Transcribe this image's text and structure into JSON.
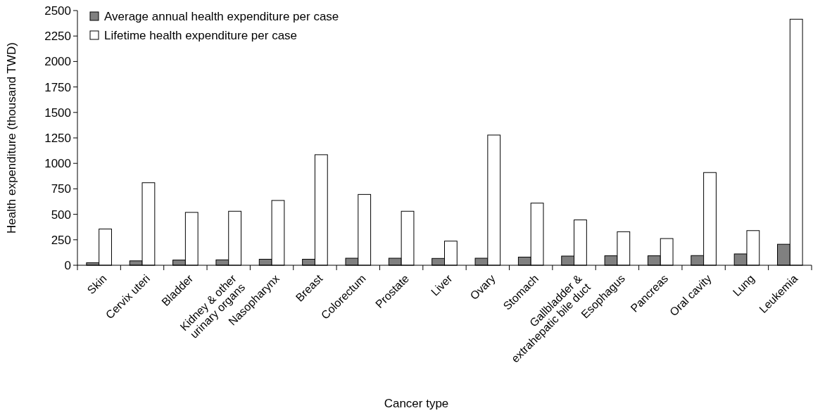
{
  "chart_data": {
    "type": "bar",
    "xlabel": "Cancer type",
    "ylabel": "Health expenditure (thousand TWD)",
    "categories": [
      "Skin",
      "Cervix uteri",
      "Bladder",
      "Kidney & other\nurinary organs",
      "Nasopharynx",
      "Breast",
      "Colorectum",
      "Prostate",
      "Liver",
      "Ovary",
      "Stomach",
      "Gallbladder &\nextrahepatic bile duct",
      "Esophagus",
      "Pancreas",
      "Oral cavity",
      "Lung",
      "Leukemia"
    ],
    "series": [
      {
        "name": "Average annual health expenditure per case",
        "color": "#808080",
        "values": [
          25,
          43,
          51,
          53,
          59,
          59,
          69,
          69,
          67,
          69,
          80,
          90,
          93,
          93,
          95,
          111,
          206
        ]
      },
      {
        "name": "Lifetime health expenditure per case",
        "color": "#ffffff",
        "values": [
          356,
          810,
          519,
          530,
          636,
          1085,
          695,
          530,
          237,
          1278,
          610,
          445,
          329,
          262,
          910,
          340,
          2415
        ]
      }
    ],
    "ylim": [
      0,
      2500
    ],
    "yticks": [
      0,
      250,
      500,
      750,
      1000,
      1250,
      1500,
      1750,
      2000,
      2250,
      2500
    ],
    "grid": false,
    "legend": "top left"
  }
}
